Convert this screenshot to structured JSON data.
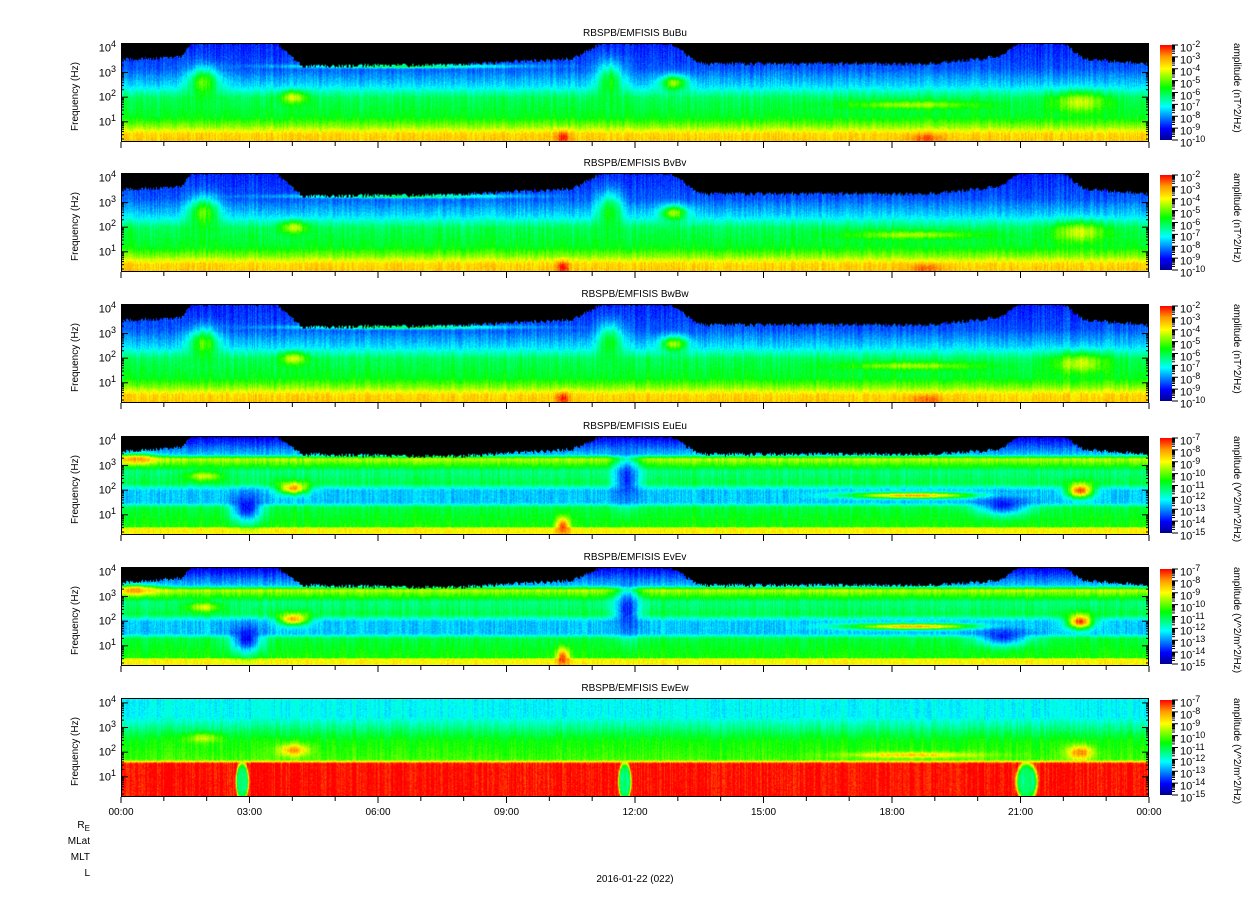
{
  "chart_data": {
    "type": "heatmap",
    "xlabel_date": "2016-01-22 (022)",
    "x_ticks": [
      "00:00",
      "03:00",
      "06:00",
      "09:00",
      "12:00",
      "15:00",
      "18:00",
      "21:00",
      "00:00"
    ],
    "x_range_hours": [
      0,
      24
    ],
    "ephemeris_labels": [
      "R",
      "MLat",
      "MLT",
      "L"
    ],
    "ephemeris_sub": "E",
    "ylabel": "Frequency (Hz)",
    "ylim_log10": [
      0.18,
      4.2
    ],
    "y_ticks": [
      {
        "base": "10",
        "exp": "1",
        "v": 1
      },
      {
        "base": "10",
        "exp": "2",
        "v": 2
      },
      {
        "base": "10",
        "exp": "3",
        "v": 3
      },
      {
        "base": "10",
        "exp": "4",
        "v": 4
      }
    ],
    "colormap": [
      "#000090",
      "#0000ff",
      "#00ffff",
      "#00ff00",
      "#ffff00",
      "#ff9900",
      "#ff0000"
    ],
    "nodata_color": "#000000",
    "panels": [
      {
        "title": "RBSPB/EMFISIS  BuBu",
        "cbar_title": "amplitude (nT^2/Hz)",
        "cbar_exps": [
          "-2",
          "-3",
          "-4",
          "-5",
          "-6",
          "-7",
          "-8",
          "-9",
          "-10"
        ],
        "kind": "B"
      },
      {
        "title": "RBSPB/EMFISIS  BvBv",
        "cbar_title": "amplitude (nT^2/Hz)",
        "cbar_exps": [
          "-2",
          "-3",
          "-4",
          "-5",
          "-6",
          "-7",
          "-8",
          "-9",
          "-10"
        ],
        "kind": "B"
      },
      {
        "title": "RBSPB/EMFISIS  BwBw",
        "cbar_title": "amplitude (nT^2/Hz)",
        "cbar_exps": [
          "-2",
          "-3",
          "-4",
          "-5",
          "-6",
          "-7",
          "-8",
          "-9",
          "-10"
        ],
        "kind": "B"
      },
      {
        "title": "RBSPB/EMFISIS  EuEu",
        "cbar_title": "amplitude (V^2/m^2/Hz)",
        "cbar_exps": [
          "-7",
          "-8",
          "-9",
          "-10",
          "-11",
          "-12",
          "-13",
          "-14",
          "-15"
        ],
        "kind": "E"
      },
      {
        "title": "RBSPB/EMFISIS  EvEv",
        "cbar_title": "amplitude (V^2/m^2/Hz)",
        "cbar_exps": [
          "-7",
          "-8",
          "-9",
          "-10",
          "-11",
          "-12",
          "-13",
          "-14",
          "-15"
        ],
        "kind": "E"
      },
      {
        "title": "RBSPB/EMFISIS  EwEw",
        "cbar_title": "amplitude (V^2/m^2/Hz)",
        "cbar_exps": [
          "-7",
          "-8",
          "-9",
          "-10",
          "-11",
          "-12",
          "-13",
          "-14",
          "-15"
        ],
        "kind": "Ew"
      }
    ],
    "models": {
      "B": {
        "profile": [
          [
            0.18,
            0.82
          ],
          [
            0.5,
            0.8
          ],
          [
            0.8,
            0.66
          ],
          [
            1.2,
            0.53
          ],
          [
            2.0,
            0.48
          ],
          [
            2.5,
            0.32
          ],
          [
            3.2,
            0.2
          ],
          [
            4.2,
            0.15
          ]
        ],
        "cutoff": [
          [
            0,
            3.55
          ],
          [
            1.4,
            3.7
          ],
          [
            1.6,
            4.25
          ],
          [
            3.6,
            4.25
          ],
          [
            4.2,
            3.3
          ],
          [
            7.5,
            3.35
          ],
          [
            10.5,
            3.6
          ],
          [
            11.2,
            4.25
          ],
          [
            12.8,
            4.25
          ],
          [
            13.5,
            3.4
          ],
          [
            19,
            3.4
          ],
          [
            20.5,
            3.7
          ],
          [
            21,
            4.25
          ],
          [
            22,
            4.25
          ],
          [
            22.5,
            3.6
          ],
          [
            24,
            3.4
          ]
        ],
        "features": [
          {
            "t": 1.9,
            "lf": 2.6,
            "dt": 0.35,
            "dl": 0.6,
            "v": 0.62
          },
          {
            "t": 4.0,
            "lf": 2.0,
            "dt": 0.3,
            "dl": 0.25,
            "v": 0.72
          },
          {
            "t": 12.9,
            "lf": 2.6,
            "dt": 0.3,
            "dl": 0.3,
            "v": 0.68
          },
          {
            "t": 11.4,
            "lf": 2.6,
            "dt": 0.3,
            "dl": 0.8,
            "v": 0.55
          },
          {
            "t": 10.3,
            "lf": 0.35,
            "dt": 0.15,
            "dl": 0.25,
            "v": 0.99
          },
          {
            "t": 18.8,
            "lf": 0.3,
            "dt": 0.4,
            "dl": 0.2,
            "v": 0.93
          },
          {
            "t": 22.4,
            "lf": 1.8,
            "dt": 0.6,
            "dl": 0.4,
            "v": 0.72
          },
          {
            "t": 18.5,
            "lf": 1.7,
            "dt": 1.5,
            "dl": 0.15,
            "v": 0.68
          },
          {
            "t": 6.5,
            "lf": 3.3,
            "dt": 2.5,
            "dl": 0.08,
            "v": 0.5
          }
        ]
      },
      "E": {
        "profile": [
          [
            0.18,
            0.76
          ],
          [
            0.45,
            0.76
          ],
          [
            0.5,
            0.56
          ],
          [
            1.3,
            0.5
          ],
          [
            1.5,
            0.3
          ],
          [
            2.0,
            0.3
          ],
          [
            2.3,
            0.5
          ],
          [
            2.8,
            0.45
          ],
          [
            3.3,
            0.7
          ],
          [
            3.5,
            0.3
          ],
          [
            4.2,
            0.1
          ]
        ],
        "cutoff": [
          [
            0,
            3.6
          ],
          [
            1.4,
            3.8
          ],
          [
            1.6,
            4.25
          ],
          [
            3.6,
            4.25
          ],
          [
            4.2,
            3.5
          ],
          [
            7.5,
            3.4
          ],
          [
            10.5,
            3.7
          ],
          [
            11.2,
            4.25
          ],
          [
            12.8,
            4.25
          ],
          [
            13.5,
            3.5
          ],
          [
            19,
            3.5
          ],
          [
            20.5,
            3.7
          ],
          [
            21,
            4.25
          ],
          [
            22,
            4.25
          ],
          [
            22.5,
            3.7
          ],
          [
            24,
            3.5
          ]
        ],
        "features": [
          {
            "t": 0.3,
            "lf": 3.3,
            "dt": 0.5,
            "dl": 0.2,
            "v": 0.86
          },
          {
            "t": 4.0,
            "lf": 2.1,
            "dt": 0.35,
            "dl": 0.25,
            "v": 0.86
          },
          {
            "t": 1.9,
            "lf": 2.6,
            "dt": 0.4,
            "dl": 0.2,
            "v": 0.72
          },
          {
            "t": 10.3,
            "lf": 0.5,
            "dt": 0.15,
            "dl": 0.4,
            "v": 0.96
          },
          {
            "t": 22.4,
            "lf": 2.0,
            "dt": 0.3,
            "dl": 0.3,
            "v": 0.95
          },
          {
            "t": 18.5,
            "lf": 1.8,
            "dt": 1.5,
            "dl": 0.12,
            "v": 0.86
          },
          {
            "t": 2.9,
            "lf": 1.3,
            "dt": 0.35,
            "dl": 0.6,
            "v": 0.12
          },
          {
            "t": 11.8,
            "lf": 2.5,
            "dt": 0.3,
            "dl": 1.0,
            "v": 0.15
          },
          {
            "t": 20.6,
            "lf": 1.4,
            "dt": 0.6,
            "dl": 0.4,
            "v": 0.15
          }
        ]
      },
      "Ew": {
        "profile": [
          [
            0.18,
            0.99
          ],
          [
            1.55,
            0.99
          ],
          [
            1.7,
            0.6
          ],
          [
            2.5,
            0.55
          ],
          [
            3.0,
            0.45
          ],
          [
            3.5,
            0.35
          ],
          [
            4.2,
            0.35
          ]
        ],
        "cutoff": [
          [
            0,
            5
          ],
          [
            24,
            5
          ]
        ],
        "features": [
          {
            "t": 2.8,
            "lf": 0.8,
            "dt": 0.15,
            "dl": 0.8,
            "v": 0.45,
            "shape": "box"
          },
          {
            "t": 11.75,
            "lf": 0.8,
            "dt": 0.15,
            "dl": 0.8,
            "v": 0.45,
            "shape": "box"
          },
          {
            "t": 21.15,
            "lf": 0.8,
            "dt": 0.25,
            "dl": 0.8,
            "v": 0.45,
            "shape": "box"
          },
          {
            "t": 4.0,
            "lf": 2.1,
            "dt": 0.35,
            "dl": 0.25,
            "v": 0.86
          },
          {
            "t": 1.9,
            "lf": 2.6,
            "dt": 0.4,
            "dl": 0.2,
            "v": 0.7
          },
          {
            "t": 22.4,
            "lf": 2.0,
            "dt": 0.3,
            "dl": 0.3,
            "v": 0.9
          },
          {
            "t": 18.5,
            "lf": 1.9,
            "dt": 1.5,
            "dl": 0.12,
            "v": 0.82
          }
        ]
      }
    }
  }
}
